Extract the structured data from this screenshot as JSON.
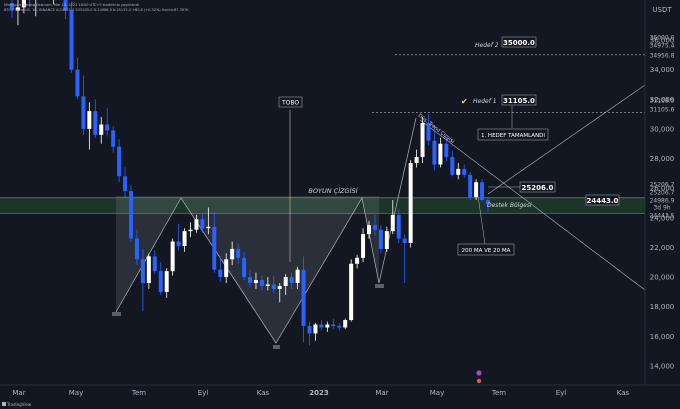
{
  "header": {
    "info": "Mixcrypto TradingView.com, Mar 15, 2023 18:00 UTC+3 tradinhub yayınlandı",
    "symbol_line": "BTC / TetherUS, 1H, BINANCE A:24913.4 Y:25205.0 D:24986.9 K:25135.0 +80.8 (+0.32%) Hacim:87.397K"
  },
  "footer": {
    "brand": "TradingView"
  },
  "colors": {
    "bg": "#131722",
    "up": "#ffffff",
    "down": "#2962ff",
    "zone": "#1f3a2a",
    "zone_line": "#7aa07a",
    "grid_line": "#2a2e39",
    "text": "#d1d4dc"
  },
  "chart_data": {
    "type": "candlestick",
    "currency": "USDT",
    "y_ticks": [
      14000,
      16000,
      18000,
      20000,
      22000,
      24000,
      26000,
      28000,
      30000,
      32000,
      34000,
      36000
    ],
    "x_ticks": [
      "Mar",
      "May",
      "Tem",
      "Eyl",
      "Kas",
      "2023",
      "Mar",
      "May",
      "Tem",
      "Eyl",
      "Kas"
    ],
    "price_labels": [
      "36000.0",
      "34975.4",
      "34956.8",
      "31118.5",
      "31105.6",
      "25206.7",
      "25206.7",
      "24986.9",
      "3d 9h",
      "24443.5"
    ],
    "annotations": {
      "target2_title": "Hedef 2",
      "target2_value": "35000.0",
      "target1_title": "Hedef 1",
      "target1_value": "31105.0",
      "target1_done": "1. HEDEF TAMAMLANDI",
      "neckline": "BOYUN ÇİZGİSİ",
      "tobo": "TOBO",
      "resistance_value": "25206.0",
      "support_value": "24443.0",
      "support_zone": "Destek Bölgesi",
      "ma_note": "200 MA VE 20 MA",
      "trend_label": "Düş. Trend Çizgisi"
    },
    "levels": {
      "target2": 35000,
      "target1": 31105,
      "resistance": 25206,
      "support_top": 25150,
      "support_bottom": 24443
    },
    "candles": [
      {
        "o": 38500,
        "h": 41000,
        "l": 37500,
        "c": 38000
      },
      {
        "o": 38000,
        "h": 39000,
        "l": 37000,
        "c": 38200
      },
      {
        "o": 38200,
        "h": 40500,
        "l": 37800,
        "c": 39600
      },
      {
        "o": 39600,
        "h": 41200,
        "l": 38200,
        "c": 38800
      },
      {
        "o": 38800,
        "h": 40600,
        "l": 37600,
        "c": 39600
      },
      {
        "o": 39600,
        "h": 42000,
        "l": 39000,
        "c": 40800
      },
      {
        "o": 40800,
        "h": 41400,
        "l": 39200,
        "c": 39600
      },
      {
        "o": 39600,
        "h": 40800,
        "l": 38400,
        "c": 40200
      },
      {
        "o": 40200,
        "h": 40600,
        "l": 38800,
        "c": 39200
      },
      {
        "o": 39200,
        "h": 39800,
        "l": 37400,
        "c": 38000
      },
      {
        "o": 38000,
        "h": 38600,
        "l": 33800,
        "c": 34000
      },
      {
        "o": 34000,
        "h": 34800,
        "l": 32000,
        "c": 32200
      },
      {
        "o": 32200,
        "h": 33600,
        "l": 29600,
        "c": 30000
      },
      {
        "o": 30000,
        "h": 31800,
        "l": 28600,
        "c": 31200
      },
      {
        "o": 31200,
        "h": 32000,
        "l": 29400,
        "c": 29600
      },
      {
        "o": 29600,
        "h": 30800,
        "l": 29000,
        "c": 30300
      },
      {
        "o": 30300,
        "h": 31400,
        "l": 29500,
        "c": 29900
      },
      {
        "o": 29900,
        "h": 30200,
        "l": 28400,
        "c": 28800
      },
      {
        "o": 28800,
        "h": 29300,
        "l": 26400,
        "c": 26800
      },
      {
        "o": 26800,
        "h": 27400,
        "l": 25400,
        "c": 25800
      },
      {
        "o": 25800,
        "h": 26200,
        "l": 22400,
        "c": 22600
      },
      {
        "o": 22600,
        "h": 23200,
        "l": 20800,
        "c": 21200
      },
      {
        "o": 21200,
        "h": 21900,
        "l": 17700,
        "c": 19600
      },
      {
        "o": 19600,
        "h": 21600,
        "l": 19200,
        "c": 21400
      },
      {
        "o": 21400,
        "h": 21800,
        "l": 20200,
        "c": 20400
      },
      {
        "o": 20400,
        "h": 21000,
        "l": 18800,
        "c": 19000
      },
      {
        "o": 19000,
        "h": 20600,
        "l": 18600,
        "c": 20400
      },
      {
        "o": 20400,
        "h": 22600,
        "l": 20100,
        "c": 22400
      },
      {
        "o": 22400,
        "h": 23600,
        "l": 21800,
        "c": 22100
      },
      {
        "o": 22100,
        "h": 23300,
        "l": 21700,
        "c": 23100
      },
      {
        "o": 23100,
        "h": 23700,
        "l": 22700,
        "c": 23200
      },
      {
        "o": 23200,
        "h": 24200,
        "l": 23000,
        "c": 23900
      },
      {
        "o": 23900,
        "h": 24300,
        "l": 23000,
        "c": 23300
      },
      {
        "o": 23300,
        "h": 24700,
        "l": 22900,
        "c": 23400
      },
      {
        "o": 23400,
        "h": 24400,
        "l": 20300,
        "c": 20500
      },
      {
        "o": 20500,
        "h": 21400,
        "l": 19700,
        "c": 20000
      },
      {
        "o": 20000,
        "h": 21600,
        "l": 19600,
        "c": 21200
      },
      {
        "o": 21200,
        "h": 22400,
        "l": 20800,
        "c": 21900
      },
      {
        "o": 21900,
        "h": 22300,
        "l": 20900,
        "c": 21300
      },
      {
        "o": 21300,
        "h": 21700,
        "l": 19800,
        "c": 20000
      },
      {
        "o": 20000,
        "h": 20500,
        "l": 19300,
        "c": 19600
      },
      {
        "o": 19600,
        "h": 20300,
        "l": 19200,
        "c": 19800
      },
      {
        "o": 19800,
        "h": 20100,
        "l": 19100,
        "c": 19400
      },
      {
        "o": 19400,
        "h": 20000,
        "l": 19100,
        "c": 19500
      },
      {
        "o": 19500,
        "h": 20100,
        "l": 18900,
        "c": 19200
      },
      {
        "o": 19200,
        "h": 19600,
        "l": 18300,
        "c": 19400
      },
      {
        "o": 19400,
        "h": 20200,
        "l": 18800,
        "c": 20000
      },
      {
        "o": 20000,
        "h": 20300,
        "l": 19200,
        "c": 19600
      },
      {
        "o": 19600,
        "h": 20700,
        "l": 19200,
        "c": 20500
      },
      {
        "o": 20500,
        "h": 21400,
        "l": 15600,
        "c": 16700
      },
      {
        "o": 16700,
        "h": 17000,
        "l": 15400,
        "c": 16200
      },
      {
        "o": 16200,
        "h": 16900,
        "l": 15700,
        "c": 16800
      },
      {
        "o": 16800,
        "h": 17100,
        "l": 16400,
        "c": 16600
      },
      {
        "o": 16600,
        "h": 17000,
        "l": 16300,
        "c": 16800
      },
      {
        "o": 16800,
        "h": 17200,
        "l": 16500,
        "c": 16700
      },
      {
        "o": 16700,
        "h": 16900,
        "l": 16400,
        "c": 16600
      },
      {
        "o": 16600,
        "h": 17200,
        "l": 16500,
        "c": 17100
      },
      {
        "o": 17100,
        "h": 21200,
        "l": 17000,
        "c": 20900
      },
      {
        "o": 20900,
        "h": 21500,
        "l": 20600,
        "c": 21300
      },
      {
        "o": 21300,
        "h": 23300,
        "l": 21000,
        "c": 22900
      },
      {
        "o": 22900,
        "h": 23800,
        "l": 22600,
        "c": 23500
      },
      {
        "o": 23500,
        "h": 24200,
        "l": 22800,
        "c": 23200
      },
      {
        "o": 23200,
        "h": 23500,
        "l": 21600,
        "c": 21900
      },
      {
        "o": 21900,
        "h": 23400,
        "l": 21700,
        "c": 23100
      },
      {
        "o": 23100,
        "h": 25200,
        "l": 22900,
        "c": 24200
      },
      {
        "o": 24200,
        "h": 24600,
        "l": 22300,
        "c": 22600
      },
      {
        "o": 22600,
        "h": 22900,
        "l": 19600,
        "c": 22300
      },
      {
        "o": 22300,
        "h": 27900,
        "l": 22000,
        "c": 27700
      },
      {
        "o": 27700,
        "h": 28600,
        "l": 27400,
        "c": 28100
      },
      {
        "o": 28100,
        "h": 30800,
        "l": 27700,
        "c": 30400
      },
      {
        "o": 30400,
        "h": 31000,
        "l": 28900,
        "c": 29200
      },
      {
        "o": 29200,
        "h": 30200,
        "l": 27200,
        "c": 27600
      },
      {
        "o": 27600,
        "h": 29400,
        "l": 27400,
        "c": 29000
      },
      {
        "o": 29000,
        "h": 29400,
        "l": 27800,
        "c": 28100
      },
      {
        "o": 28100,
        "h": 28500,
        "l": 26800,
        "c": 26900
      },
      {
        "o": 26900,
        "h": 27700,
        "l": 26600,
        "c": 27300
      },
      {
        "o": 27300,
        "h": 27600,
        "l": 26700,
        "c": 26900
      },
      {
        "o": 26900,
        "h": 27100,
        "l": 25200,
        "c": 25400
      },
      {
        "o": 25400,
        "h": 26600,
        "l": 25200,
        "c": 26400
      },
      {
        "o": 26400,
        "h": 26600,
        "l": 25100,
        "c": 25200
      },
      {
        "o": 25200,
        "h": 25400,
        "l": 24400,
        "c": 24900
      }
    ]
  }
}
